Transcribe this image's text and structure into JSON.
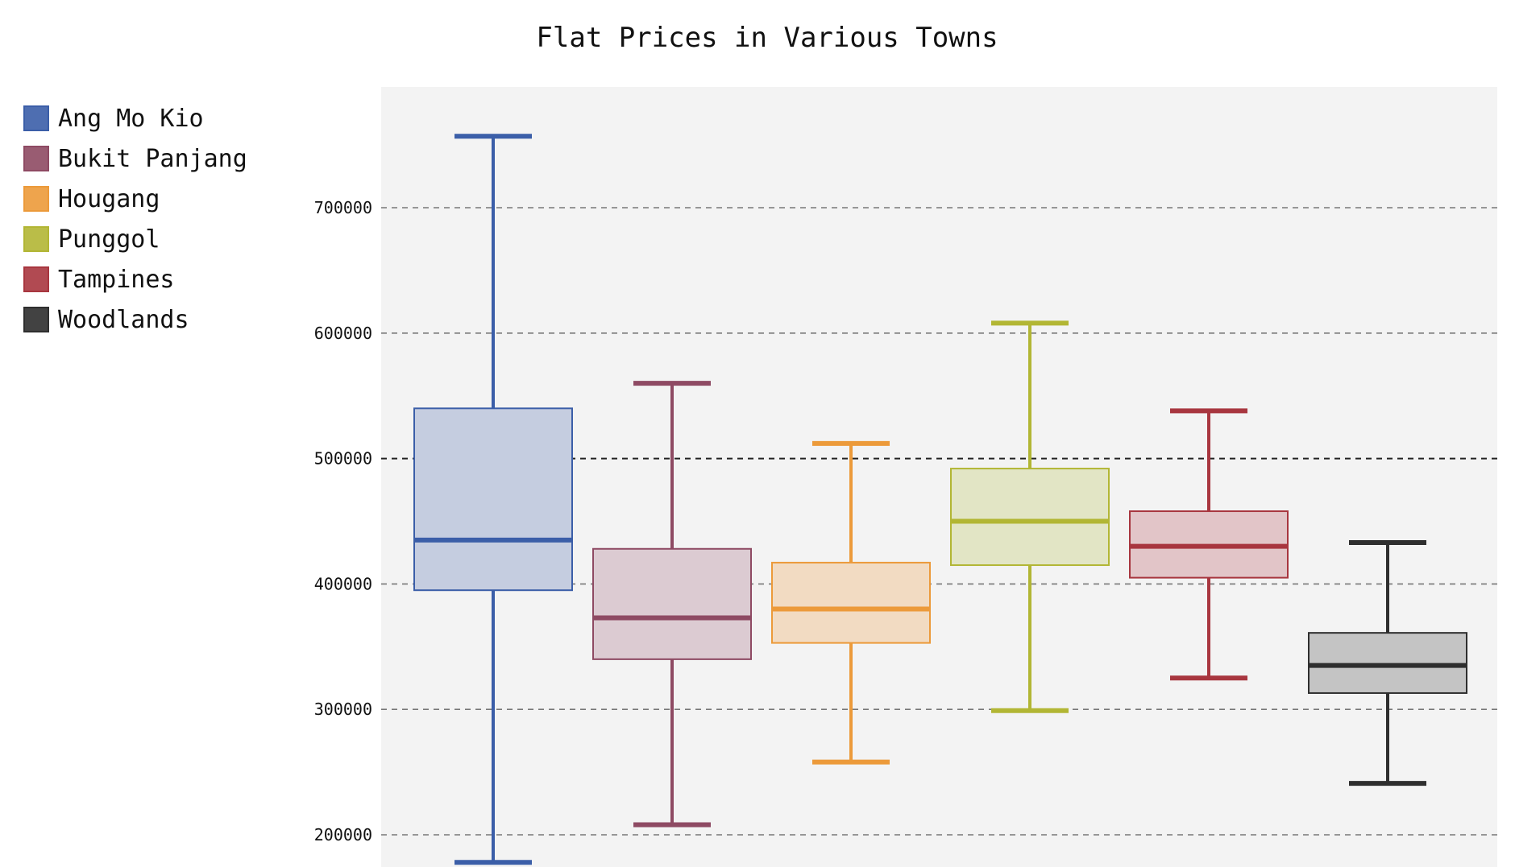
{
  "chart_data": {
    "type": "box",
    "title": "Flat Prices in Various Towns",
    "xlabel": "",
    "ylabel": "",
    "ylim": [
      180000,
      800000
    ],
    "yticks": [
      200000,
      300000,
      400000,
      500000,
      600000,
      700000
    ],
    "ytick_labels": [
      "200000",
      "300000",
      "400000",
      "500000",
      "600000",
      "700000"
    ],
    "grid": true,
    "legend_position": "top-left",
    "plot_background": "#f3f3f3",
    "series": [
      {
        "name": "Ang Mo Kio",
        "color": "#3b5ea8",
        "box_fill": "#c5cde0",
        "min": 178000,
        "q1": 395000,
        "median": 435000,
        "q3": 540000,
        "max": 757000
      },
      {
        "name": "Bukit Panjang",
        "color": "#8e4a63",
        "box_fill": "#dccbd2",
        "min": 208000,
        "q1": 340000,
        "median": 373000,
        "q3": 428000,
        "max": 560000
      },
      {
        "name": "Hougang",
        "color": "#ec9a3a",
        "box_fill": "#f2dbc2",
        "min": 258000,
        "q1": 353000,
        "median": 380000,
        "q3": 417000,
        "max": 512000
      },
      {
        "name": "Punggol",
        "color": "#b2b634",
        "box_fill": "#e2e5c5",
        "min": 299000,
        "q1": 415000,
        "median": 450000,
        "q3": 492000,
        "max": 608000
      },
      {
        "name": "Tampines",
        "color": "#a8363f",
        "box_fill": "#e2c5c8",
        "min": 325000,
        "q1": 405000,
        "median": 430000,
        "q3": 458000,
        "max": 538000
      },
      {
        "name": "Woodlands",
        "color": "#2e2e2e",
        "box_fill": "#c4c4c4",
        "min": 241000,
        "q1": 313000,
        "median": 335000,
        "q3": 361000,
        "max": 433000
      }
    ]
  }
}
